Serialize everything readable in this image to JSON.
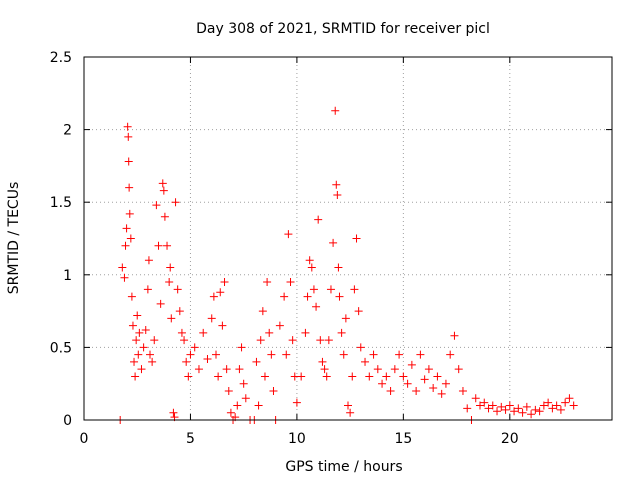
{
  "chart_data": {
    "type": "scatter",
    "title": "Day 308 of 2021, SRMTID for receiver picl",
    "xlabel": "GPS time / hours",
    "ylabel": "SRMTID / TECUs",
    "xlim": [
      0,
      24.8
    ],
    "ylim": [
      0,
      2.5
    ],
    "x_ticks": [
      0,
      5,
      10,
      15,
      20
    ],
    "x_tick_labels": [
      "0",
      "5",
      "10",
      "15",
      "20"
    ],
    "y_ticks": [
      0,
      0.5,
      1,
      1.5,
      2,
      2.5
    ],
    "y_tick_labels": [
      "0",
      "0.5",
      "1",
      "1.5",
      "2",
      "2.5"
    ],
    "grid": true,
    "marker": "+",
    "series": [
      {
        "name": "SRMTID",
        "color": "#ff0000",
        "points": [
          [
            1.7,
            0.0
          ],
          [
            1.8,
            1.05
          ],
          [
            1.9,
            0.98
          ],
          [
            1.95,
            1.2
          ],
          [
            2.0,
            1.32
          ],
          [
            2.05,
            2.02
          ],
          [
            2.08,
            1.95
          ],
          [
            2.1,
            1.78
          ],
          [
            2.12,
            1.6
          ],
          [
            2.15,
            1.42
          ],
          [
            2.2,
            1.25
          ],
          [
            2.25,
            0.85
          ],
          [
            2.3,
            0.65
          ],
          [
            2.35,
            0.4
          ],
          [
            2.4,
            0.3
          ],
          [
            2.45,
            0.55
          ],
          [
            2.5,
            0.72
          ],
          [
            2.55,
            0.45
          ],
          [
            2.6,
            0.6
          ],
          [
            2.7,
            0.35
          ],
          [
            2.8,
            0.5
          ],
          [
            2.9,
            0.62
          ],
          [
            3.0,
            0.9
          ],
          [
            3.05,
            1.1
          ],
          [
            3.1,
            0.45
          ],
          [
            3.2,
            0.4
          ],
          [
            3.3,
            0.55
          ],
          [
            3.4,
            1.48
          ],
          [
            3.5,
            1.2
          ],
          [
            3.6,
            0.8
          ],
          [
            3.7,
            1.63
          ],
          [
            3.75,
            1.58
          ],
          [
            3.8,
            1.4
          ],
          [
            3.9,
            1.2
          ],
          [
            4.0,
            0.95
          ],
          [
            4.05,
            1.05
          ],
          [
            4.1,
            0.7
          ],
          [
            4.2,
            0.05
          ],
          [
            4.25,
            0.02
          ],
          [
            4.3,
            1.5
          ],
          [
            4.4,
            0.9
          ],
          [
            4.5,
            0.75
          ],
          [
            4.6,
            0.6
          ],
          [
            4.7,
            0.55
          ],
          [
            4.8,
            0.4
          ],
          [
            4.9,
            0.3
          ],
          [
            5.0,
            0.45
          ],
          [
            5.2,
            0.5
          ],
          [
            5.4,
            0.35
          ],
          [
            5.6,
            0.6
          ],
          [
            5.8,
            0.42
          ],
          [
            6.0,
            0.7
          ],
          [
            6.1,
            0.85
          ],
          [
            6.2,
            0.45
          ],
          [
            6.3,
            0.3
          ],
          [
            6.4,
            0.88
          ],
          [
            6.5,
            0.65
          ],
          [
            6.6,
            0.95
          ],
          [
            6.7,
            0.35
          ],
          [
            6.8,
            0.2
          ],
          [
            6.9,
            0.05
          ],
          [
            7.0,
            0.0
          ],
          [
            7.1,
            0.02
          ],
          [
            7.2,
            0.1
          ],
          [
            7.3,
            0.35
          ],
          [
            7.4,
            0.5
          ],
          [
            7.5,
            0.25
          ],
          [
            7.6,
            0.15
          ],
          [
            7.8,
            0.0
          ],
          [
            8.0,
            0.0
          ],
          [
            8.1,
            0.4
          ],
          [
            8.2,
            0.1
          ],
          [
            8.3,
            0.55
          ],
          [
            8.4,
            0.75
          ],
          [
            8.5,
            0.3
          ],
          [
            8.6,
            0.95
          ],
          [
            8.7,
            0.6
          ],
          [
            8.8,
            0.45
          ],
          [
            8.9,
            0.2
          ],
          [
            9.0,
            0.0
          ],
          [
            9.2,
            0.65
          ],
          [
            9.4,
            0.85
          ],
          [
            9.5,
            0.45
          ],
          [
            9.6,
            1.28
          ],
          [
            9.7,
            0.95
          ],
          [
            9.8,
            0.55
          ],
          [
            9.9,
            0.3
          ],
          [
            10.0,
            0.12
          ],
          [
            10.2,
            0.3
          ],
          [
            10.4,
            0.6
          ],
          [
            10.5,
            0.85
          ],
          [
            10.6,
            1.1
          ],
          [
            10.7,
            1.05
          ],
          [
            10.8,
            0.9
          ],
          [
            10.9,
            0.78
          ],
          [
            11.0,
            1.38
          ],
          [
            11.1,
            0.55
          ],
          [
            11.2,
            0.4
          ],
          [
            11.3,
            0.35
          ],
          [
            11.4,
            0.3
          ],
          [
            11.5,
            0.55
          ],
          [
            11.6,
            0.9
          ],
          [
            11.7,
            1.22
          ],
          [
            11.8,
            2.13
          ],
          [
            11.85,
            1.62
          ],
          [
            11.9,
            1.55
          ],
          [
            11.95,
            1.05
          ],
          [
            12.0,
            0.85
          ],
          [
            12.1,
            0.6
          ],
          [
            12.2,
            0.45
          ],
          [
            12.3,
            0.7
          ],
          [
            12.4,
            0.1
          ],
          [
            12.5,
            0.05
          ],
          [
            12.6,
            0.3
          ],
          [
            12.7,
            0.9
          ],
          [
            12.8,
            1.25
          ],
          [
            12.9,
            0.75
          ],
          [
            13.0,
            0.5
          ],
          [
            13.2,
            0.4
          ],
          [
            13.4,
            0.3
          ],
          [
            13.6,
            0.45
          ],
          [
            13.8,
            0.35
          ],
          [
            14.0,
            0.25
          ],
          [
            14.2,
            0.3
          ],
          [
            14.4,
            0.2
          ],
          [
            14.6,
            0.35
          ],
          [
            14.8,
            0.45
          ],
          [
            15.0,
            0.3
          ],
          [
            15.2,
            0.25
          ],
          [
            15.4,
            0.38
          ],
          [
            15.6,
            0.2
          ],
          [
            15.8,
            0.45
          ],
          [
            16.0,
            0.28
          ],
          [
            16.2,
            0.35
          ],
          [
            16.4,
            0.22
          ],
          [
            16.6,
            0.3
          ],
          [
            16.8,
            0.18
          ],
          [
            17.0,
            0.25
          ],
          [
            17.2,
            0.45
          ],
          [
            17.4,
            0.58
          ],
          [
            17.6,
            0.35
          ],
          [
            17.8,
            0.2
          ],
          [
            18.0,
            0.08
          ],
          [
            18.2,
            0.0
          ],
          [
            18.4,
            0.15
          ],
          [
            18.6,
            0.1
          ],
          [
            18.8,
            0.12
          ],
          [
            19.0,
            0.08
          ],
          [
            19.2,
            0.1
          ],
          [
            19.4,
            0.06
          ],
          [
            19.6,
            0.09
          ],
          [
            19.8,
            0.07
          ],
          [
            20.0,
            0.1
          ],
          [
            20.2,
            0.06
          ],
          [
            20.4,
            0.08
          ],
          [
            20.6,
            0.05
          ],
          [
            20.8,
            0.09
          ],
          [
            21.0,
            0.04
          ],
          [
            21.2,
            0.07
          ],
          [
            21.4,
            0.06
          ],
          [
            21.6,
            0.1
          ],
          [
            21.8,
            0.12
          ],
          [
            22.0,
            0.08
          ],
          [
            22.2,
            0.1
          ],
          [
            22.4,
            0.07
          ],
          [
            22.6,
            0.12
          ],
          [
            22.8,
            0.15
          ],
          [
            23.0,
            0.1
          ]
        ]
      }
    ]
  }
}
